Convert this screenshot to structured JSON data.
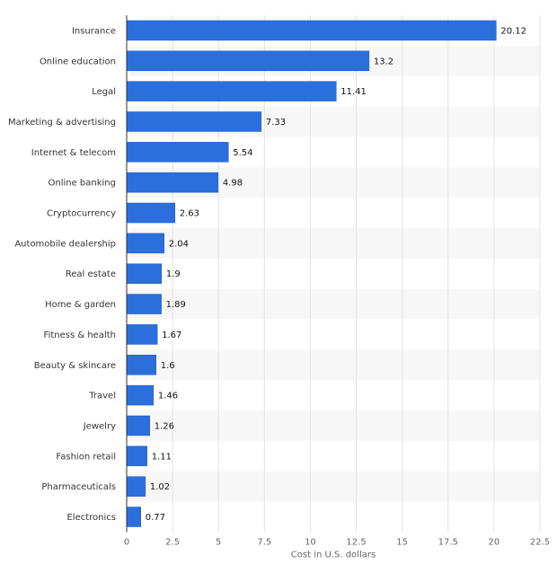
{
  "chart_data": {
    "type": "bar",
    "orientation": "horizontal",
    "categories": [
      "Insurance",
      "Online education",
      "Legal",
      "Marketing & advertising",
      "Internet & telecom",
      "Online banking",
      "Cryptocurrency",
      "Automobile dealership",
      "Real estate",
      "Home & garden",
      "Fitness & health",
      "Beauty & skincare",
      "Travel",
      "Jewelry",
      "Fashion retail",
      "Pharmaceuticals",
      "Electronics"
    ],
    "values": [
      20.12,
      13.2,
      11.41,
      7.33,
      5.54,
      4.98,
      2.63,
      2.04,
      1.9,
      1.89,
      1.67,
      1.6,
      1.46,
      1.26,
      1.11,
      1.02,
      0.77
    ],
    "value_labels": [
      "20.12",
      "13.2",
      "11.41",
      "7.33",
      "5.54",
      "4.98",
      "2.63",
      "2.04",
      "1.9",
      "1.89",
      "1.67",
      "1.6",
      "1.46",
      "1.26",
      "1.11",
      "1.02",
      "0.77"
    ],
    "xlabel": "Cost in U.S. dollars",
    "ylabel": "",
    "xlim": [
      0,
      22.5
    ],
    "xticks": [
      "0",
      "2.5",
      "5",
      "7.5",
      "10",
      "12.5",
      "15",
      "17.5",
      "20",
      "22.5"
    ],
    "grid": true,
    "legend": "none",
    "colors": {
      "bar": "#2b6fdd",
      "bar_edge": "#1f5bbf",
      "band": "#f7f7f7",
      "grid": "#e3e3e3",
      "axis": "#333333"
    }
  }
}
